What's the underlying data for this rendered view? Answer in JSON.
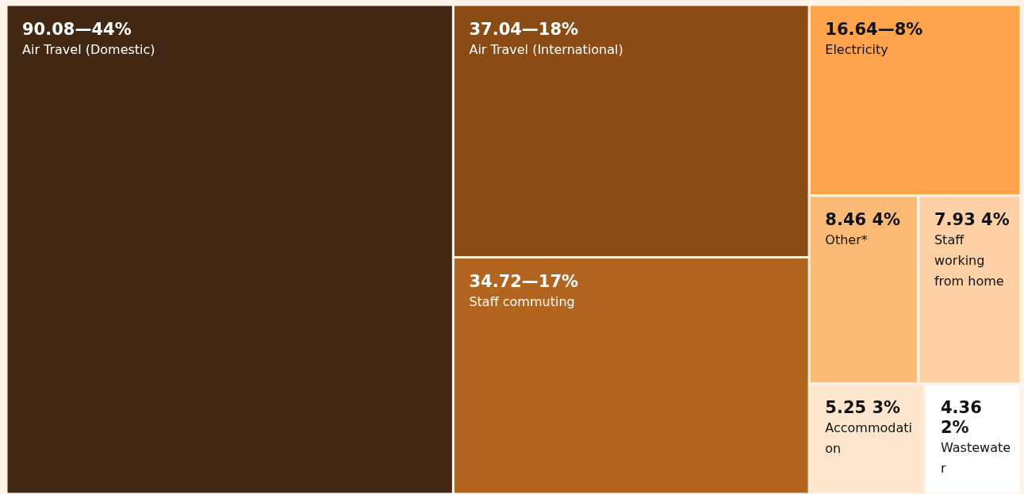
{
  "chart_data": {
    "type": "other",
    "categories": [
      "Air Travel (Domestic)",
      "Air Travel (International)",
      "Staff commuting",
      "Electricity",
      "Other*",
      "Staff working from home",
      "Accommodation",
      "Wastewater"
    ],
    "values": [
      90.08,
      37.04,
      34.72,
      16.64,
      8.46,
      7.93,
      5.25,
      4.36
    ],
    "value_labels": [
      "90.08—44%",
      "37.04—18%",
      "34.72—17%",
      "16.64—8%",
      "8.46 4%",
      "7.93 4%",
      "5.25 3%",
      "4.36 2%"
    ],
    "colors": [
      "#422812",
      "#8a4b15",
      "#b2651f",
      "#fea44d",
      "#fbbb77",
      "#fdd0a5",
      "#fee5cd",
      "#ffffff"
    ]
  }
}
